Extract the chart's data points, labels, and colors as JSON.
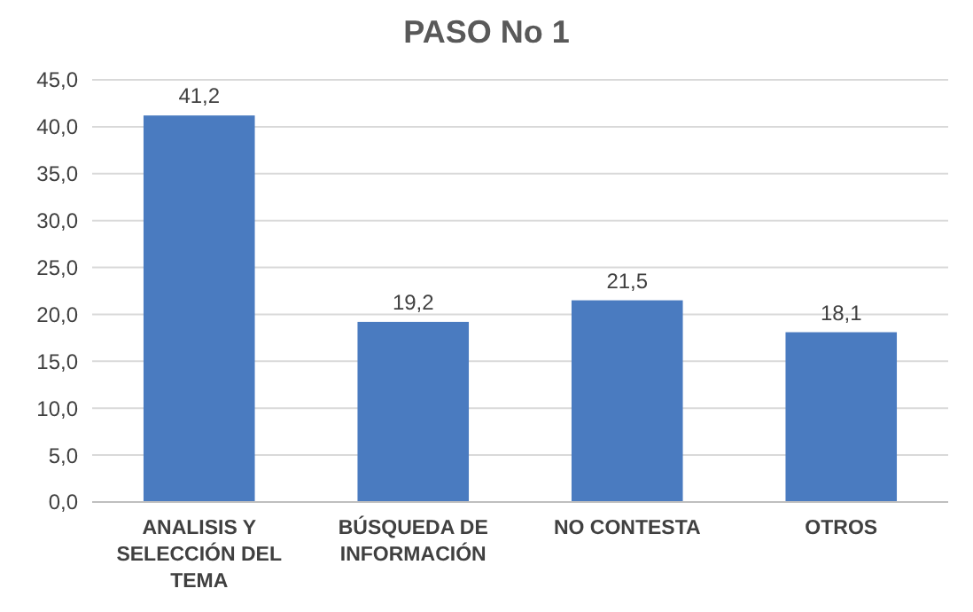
{
  "chart_data": {
    "type": "bar",
    "title": "PASO No 1",
    "categories": [
      "ANALISIS Y SELECCIÓN DEL TEMA",
      "BÚSQUEDA DE INFORMACIÓN",
      "NO CONTESTA",
      "OTROS"
    ],
    "values": [
      41.2,
      19.2,
      21.5,
      18.1
    ],
    "color": "#4a7bc0",
    "value_labels": [
      "41,2",
      "19,2",
      "21,5",
      "18,1"
    ],
    "ylim": [
      0,
      45
    ],
    "yticks": [
      {
        "value": 0,
        "label": "0,0"
      },
      {
        "value": 5,
        "label": "5,0"
      },
      {
        "value": 10,
        "label": "10,0"
      },
      {
        "value": 15,
        "label": "15,0"
      },
      {
        "value": 20,
        "label": "20,0"
      },
      {
        "value": 25,
        "label": "25,0"
      },
      {
        "value": 30,
        "label": "30,0"
      },
      {
        "value": 35,
        "label": "35,0"
      },
      {
        "value": 40,
        "label": "40,0"
      },
      {
        "value": 45,
        "label": "45,0"
      }
    ],
    "grid": true
  }
}
